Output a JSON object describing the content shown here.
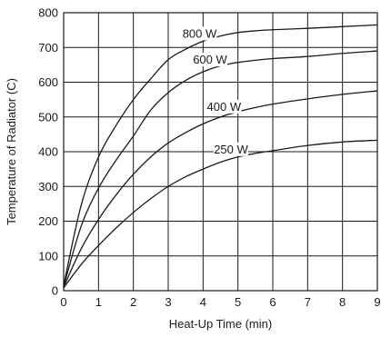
{
  "chart_data": {
    "type": "line",
    "xlabel": "Heat-Up Time (min)",
    "ylabel": "Temperature of Radiator (C)",
    "xlim": [
      0,
      9
    ],
    "ylim": [
      0,
      800
    ],
    "xticks": [
      "0",
      "1",
      "2",
      "3",
      "4",
      "5",
      "6",
      "7",
      "8",
      "9"
    ],
    "yticks": [
      "0",
      "100",
      "200",
      "300",
      "400",
      "500",
      "600",
      "700",
      "800"
    ],
    "grid": true,
    "series": [
      {
        "name": "800 W",
        "x": [
          0,
          0.5,
          1,
          1.5,
          2,
          2.5,
          3,
          3.5,
          4,
          4.5,
          5,
          5.5,
          6,
          7,
          8,
          9
        ],
        "y": [
          15,
          245,
          385,
          475,
          550,
          610,
          665,
          695,
          718,
          733,
          743,
          748,
          751,
          755,
          760,
          765
        ]
      },
      {
        "name": "600 W",
        "x": [
          0,
          0.5,
          1,
          1.5,
          2,
          2.5,
          3,
          3.5,
          4,
          4.5,
          5,
          5.5,
          6,
          7,
          8,
          9
        ],
        "y": [
          12,
          185,
          295,
          375,
          445,
          520,
          570,
          605,
          630,
          647,
          657,
          663,
          668,
          674,
          683,
          690
        ]
      },
      {
        "name": "400 W",
        "x": [
          0,
          0.5,
          1,
          1.5,
          2,
          2.5,
          3,
          3.5,
          4,
          4.5,
          5,
          5.5,
          6,
          7,
          8,
          9
        ],
        "y": [
          10,
          120,
          205,
          275,
          335,
          385,
          425,
          455,
          480,
          500,
          515,
          527,
          537,
          552,
          565,
          575
        ]
      },
      {
        "name": "250 W",
        "x": [
          0,
          0.5,
          1,
          1.5,
          2,
          2.5,
          3,
          3.5,
          4,
          4.5,
          5,
          5.5,
          6,
          7,
          8,
          9
        ],
        "y": [
          8,
          75,
          130,
          180,
          225,
          265,
          300,
          328,
          350,
          370,
          385,
          395,
          403,
          418,
          428,
          433
        ]
      }
    ],
    "annotations": [
      {
        "text": "800 W",
        "series": "800 W",
        "at_x": 3.9,
        "at_y": 740
      },
      {
        "text": "600 W",
        "series": "600 W",
        "at_x": 4.2,
        "at_y": 665
      },
      {
        "text": "400 W",
        "series": "400 W",
        "at_x": 4.6,
        "at_y": 530
      },
      {
        "text": "250 W",
        "series": "250 W",
        "at_x": 4.8,
        "at_y": 407
      }
    ]
  }
}
